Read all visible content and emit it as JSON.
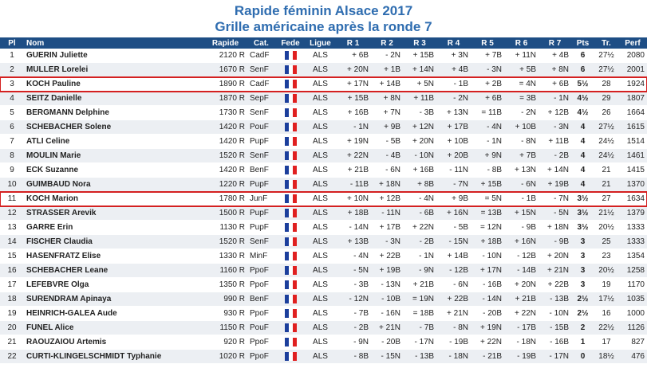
{
  "header": {
    "title": "Rapide féminin Alsace 2017",
    "subtitle": "Grille américaine après la ronde 7"
  },
  "table": {
    "columns": [
      "Pl",
      "Nom",
      "Rapide",
      "Cat.",
      "Fede",
      "Ligue",
      "R 1",
      "R 2",
      "R 3",
      "R 4",
      "R 5",
      "R 6",
      "R 7",
      "Pts",
      "Tr.",
      "Perf"
    ],
    "rows": [
      [
        "1",
        "GUERIN Juliette",
        "2120 R",
        "CadF",
        "ALS",
        "+ 6B",
        "- 2N",
        "+ 15B",
        "+ 3N",
        "+ 7B",
        "+ 11N",
        "+ 4B",
        "6",
        "27½",
        "2080"
      ],
      [
        "2",
        "MULLER Lorelei",
        "1670 R",
        "SenF",
        "ALS",
        "+ 20N",
        "+ 1B",
        "+ 14N",
        "+ 4B",
        "- 3N",
        "+ 5B",
        "+ 8N",
        "6",
        "27½",
        "2001"
      ],
      [
        "3",
        "KOCH Pauline",
        "1890 R",
        "CadF",
        "ALS",
        "+ 17N",
        "+ 14B",
        "+ 5N",
        "- 1B",
        "+ 2B",
        "= 4N",
        "+ 6B",
        "5½",
        "28",
        "1924"
      ],
      [
        "4",
        "SEITZ Danielle",
        "1870 R",
        "SepF",
        "ALS",
        "+ 15B",
        "+ 8N",
        "+ 11B",
        "- 2N",
        "+ 6B",
        "= 3B",
        "- 1N",
        "4½",
        "29",
        "1807"
      ],
      [
        "5",
        "BERGMANN Delphine",
        "1730 R",
        "SenF",
        "ALS",
        "+ 16B",
        "+ 7N",
        "- 3B",
        "+ 13N",
        "= 11B",
        "- 2N",
        "+ 12B",
        "4½",
        "26",
        "1664"
      ],
      [
        "6",
        "SCHEBACHER Solene",
        "1420 R",
        "PouF",
        "ALS",
        "- 1N",
        "+ 9B",
        "+ 12N",
        "+ 17B",
        "- 4N",
        "+ 10B",
        "- 3N",
        "4",
        "27½",
        "1615"
      ],
      [
        "7",
        "ATLI Celine",
        "1420 R",
        "PupF",
        "ALS",
        "+ 19N",
        "- 5B",
        "+ 20N",
        "+ 10B",
        "- 1N",
        "- 8N",
        "+ 11B",
        "4",
        "24½",
        "1514"
      ],
      [
        "8",
        "MOULIN Marie",
        "1520 R",
        "SenF",
        "ALS",
        "+ 22N",
        "- 4B",
        "- 10N",
        "+ 20B",
        "+ 9N",
        "+ 7B",
        "- 2B",
        "4",
        "24½",
        "1461"
      ],
      [
        "9",
        "ECK Suzanne",
        "1420 R",
        "BenF",
        "ALS",
        "+ 21B",
        "- 6N",
        "+ 16B",
        "- 11N",
        "- 8B",
        "+ 13N",
        "+ 14N",
        "4",
        "21",
        "1415"
      ],
      [
        "10",
        "GUIMBAUD Nora",
        "1220 R",
        "PupF",
        "ALS",
        "- 11B",
        "+ 18N",
        "+ 8B",
        "- 7N",
        "+ 15B",
        "- 6N",
        "+ 19B",
        "4",
        "21",
        "1370"
      ],
      [
        "11",
        "KOCH Marion",
        "1780 R",
        "JunF",
        "ALS",
        "+ 10N",
        "+ 12B",
        "- 4N",
        "+ 9B",
        "= 5N",
        "- 1B",
        "- 7N",
        "3½",
        "27",
        "1634"
      ],
      [
        "12",
        "STRASSER Arevik",
        "1500 R",
        "PupF",
        "ALS",
        "+ 18B",
        "- 11N",
        "- 6B",
        "+ 16N",
        "= 13B",
        "+ 15N",
        "- 5N",
        "3½",
        "21½",
        "1379"
      ],
      [
        "13",
        "GARRE Erin",
        "1130 R",
        "PupF",
        "ALS",
        "- 14N",
        "+ 17B",
        "+ 22N",
        "- 5B",
        "= 12N",
        "- 9B",
        "+ 18N",
        "3½",
        "20½",
        "1333"
      ],
      [
        "14",
        "FISCHER Claudia",
        "1520 R",
        "SenF",
        "ALS",
        "+ 13B",
        "- 3N",
        "- 2B",
        "- 15N",
        "+ 18B",
        "+ 16N",
        "- 9B",
        "3",
        "25",
        "1333"
      ],
      [
        "15",
        "HASENFRATZ Elise",
        "1330 R",
        "MinF",
        "ALS",
        "- 4N",
        "+ 22B",
        "- 1N",
        "+ 14B",
        "- 10N",
        "- 12B",
        "+ 20N",
        "3",
        "23",
        "1354"
      ],
      [
        "16",
        "SCHEBACHER Leane",
        "1160 R",
        "PpoF",
        "ALS",
        "- 5N",
        "+ 19B",
        "- 9N",
        "- 12B",
        "+ 17N",
        "- 14B",
        "+ 21N",
        "3",
        "20½",
        "1258"
      ],
      [
        "17",
        "LEFEBVRE Olga",
        "1350 R",
        "PpoF",
        "ALS",
        "- 3B",
        "- 13N",
        "+ 21B",
        "- 6N",
        "- 16B",
        "+ 20N",
        "+ 22B",
        "3",
        "19",
        "1170"
      ],
      [
        "18",
        "SURENDRAM Apinaya",
        "990 R",
        "BenF",
        "ALS",
        "- 12N",
        "- 10B",
        "= 19N",
        "+ 22B",
        "- 14N",
        "+ 21B",
        "- 13B",
        "2½",
        "17½",
        "1035"
      ],
      [
        "19",
        "HEINRICH-GALEA Aude",
        "930 R",
        "PpoF",
        "ALS",
        "- 7B",
        "- 16N",
        "= 18B",
        "+ 21N",
        "- 20B",
        "+ 22N",
        "- 10N",
        "2½",
        "16",
        "1000"
      ],
      [
        "20",
        "FUNEL Alice",
        "1150 R",
        "PouF",
        "ALS",
        "- 2B",
        "+ 21N",
        "- 7B",
        "- 8N",
        "+ 19N",
        "- 17B",
        "- 15B",
        "2",
        "22½",
        "1126"
      ],
      [
        "21",
        "RAOUZAIOU Artemis",
        "920 R",
        "PpoF",
        "ALS",
        "- 9N",
        "- 20B",
        "- 17N",
        "- 19B",
        "+ 22N",
        "- 18N",
        "- 16B",
        "1",
        "17",
        "827"
      ],
      [
        "22",
        "CURTI-KLINGELSCHMIDT Typhanie",
        "1020 R",
        "PpoF",
        "ALS",
        "- 8B",
        "- 15N",
        "- 13B",
        "- 18N",
        "- 21B",
        "- 19B",
        "- 17N",
        "0",
        "18½",
        "476"
      ]
    ]
  }
}
